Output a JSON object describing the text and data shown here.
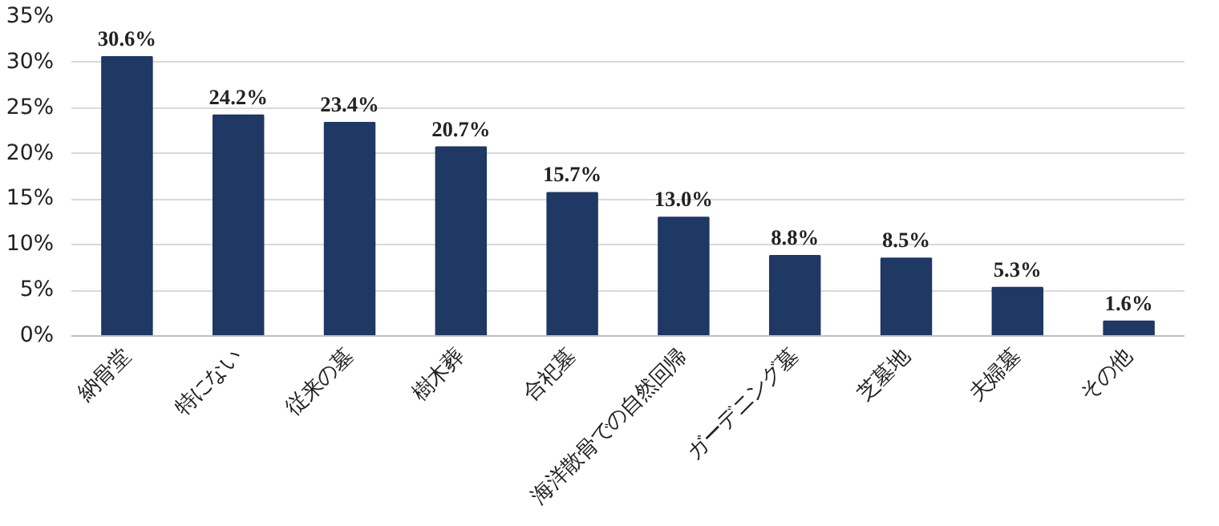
{
  "chart_data": {
    "type": "bar",
    "categories": [
      "納骨堂",
      "特にない",
      "従来の墓",
      "樹木葬",
      "合祀墓",
      "海洋散骨での自然回帰",
      "ガーデニング墓",
      "芝墓地",
      "夫婦墓",
      "その他"
    ],
    "values": [
      30.6,
      24.2,
      23.4,
      20.7,
      15.7,
      13.0,
      8.8,
      8.5,
      5.3,
      1.6
    ],
    "value_labels": [
      "30.6%",
      "24.2%",
      "23.4%",
      "20.7%",
      "15.7%",
      "13.0%",
      "8.8%",
      "8.5%",
      "5.3%",
      "1.6%"
    ],
    "color": "#1f3864",
    "ylim": [
      0,
      35
    ],
    "yticks": [
      {
        "value": 0,
        "label": "0%"
      },
      {
        "value": 5,
        "label": "5%"
      },
      {
        "value": 10,
        "label": "10%"
      },
      {
        "value": 15,
        "label": "15%"
      },
      {
        "value": 20,
        "label": "20%"
      },
      {
        "value": 25,
        "label": "25%"
      },
      {
        "value": 30,
        "label": "30%"
      },
      {
        "value": 35,
        "label": "35%"
      }
    ],
    "grid": "y"
  }
}
